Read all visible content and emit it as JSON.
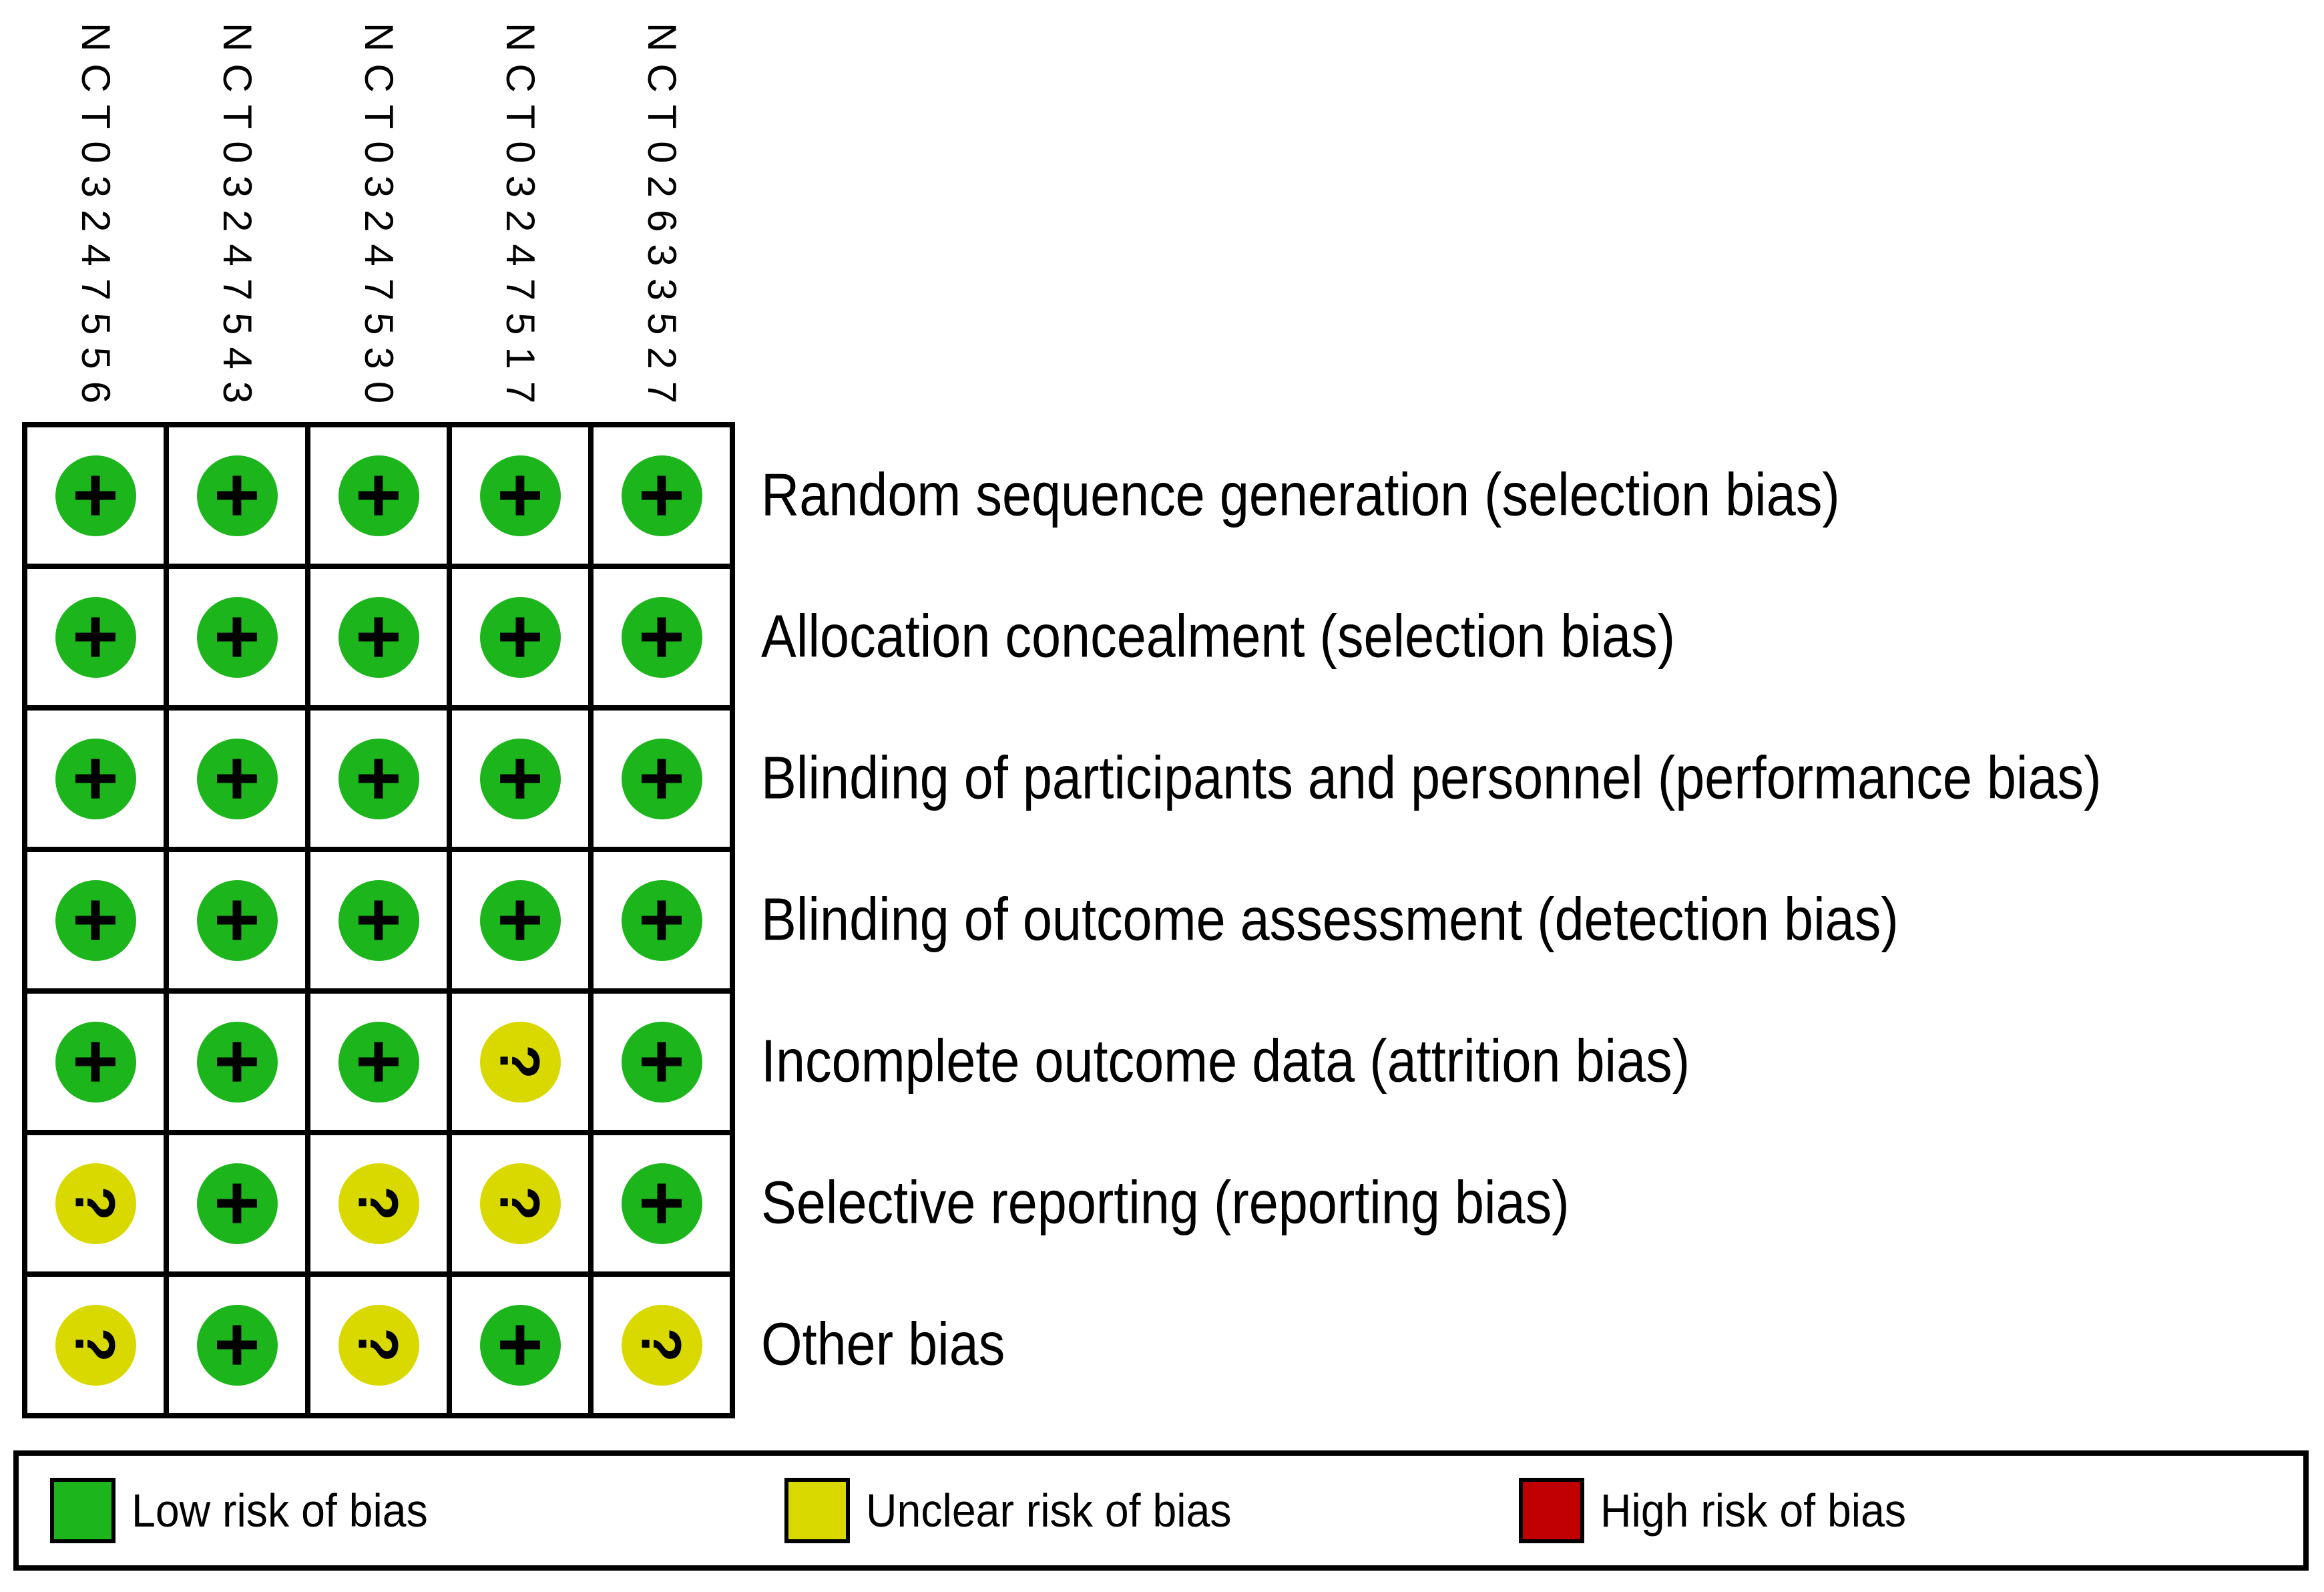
{
  "chart_data": {
    "type": "heatmap",
    "description": "Risk of bias summary grid: judgements for each bias domain across each included trial",
    "columns": [
      "NCT03247556",
      "NCT03247543",
      "NCT03247530",
      "NCT03247517",
      "NCT02633527"
    ],
    "rows": [
      "Random sequence generation (selection bias)",
      "Allocation concealment (selection bias)",
      "Blinding of participants and personnel (performance bias)",
      "Blinding of outcome assessment (detection bias)",
      "Incomplete outcome data (attrition bias)",
      "Selective reporting (reporting bias)",
      "Other bias"
    ],
    "values": [
      [
        "low",
        "low",
        "low",
        "low",
        "low"
      ],
      [
        "low",
        "low",
        "low",
        "low",
        "low"
      ],
      [
        "low",
        "low",
        "low",
        "low",
        "low"
      ],
      [
        "low",
        "low",
        "low",
        "low",
        "low"
      ],
      [
        "low",
        "low",
        "low",
        "unclear",
        "low"
      ],
      [
        "unclear",
        "low",
        "unclear",
        "unclear",
        "low"
      ],
      [
        "unclear",
        "low",
        "unclear",
        "low",
        "unclear"
      ]
    ],
    "cell_symbols": {
      "low": "+",
      "unclear": "?"
    },
    "cell_colors": {
      "low": "#1CB51C",
      "unclear": "#D9D900",
      "high": "#C00000"
    },
    "legend": [
      {
        "value": "low",
        "label": "Low risk of bias",
        "color": "#1CB51C"
      },
      {
        "value": "unclear",
        "label": "Unclear risk of bias",
        "color": "#D9D900"
      },
      {
        "value": "high",
        "label": "High risk of bias",
        "color": "#C00000"
      }
    ],
    "legend_position": "bottom",
    "grid_on": true
  }
}
